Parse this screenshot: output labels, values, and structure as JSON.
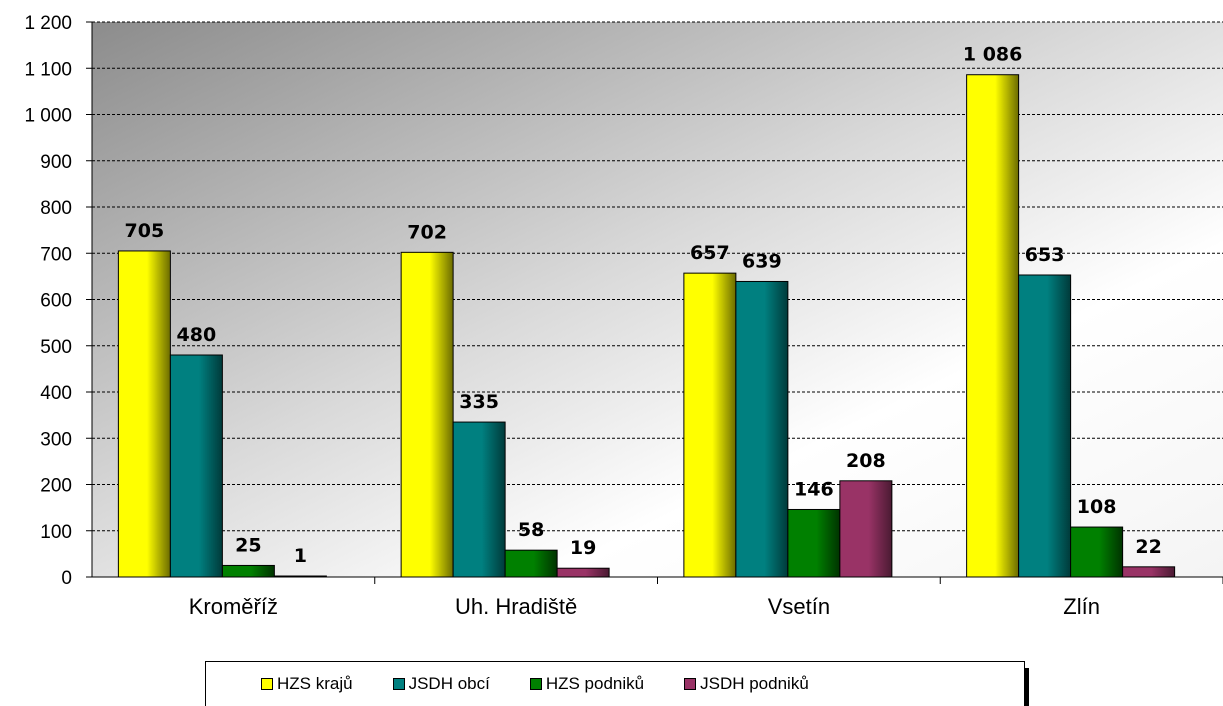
{
  "chart_data": {
    "type": "bar",
    "categories": [
      "Kroměříž",
      "Uh. Hradiště",
      "Vsetín",
      "Zlín"
    ],
    "series": [
      {
        "name": "HZS krajů",
        "values": [
          705,
          702,
          657,
          1086
        ],
        "color": "#ffff00",
        "dark": "#6b6b00"
      },
      {
        "name": "JSDH obcí",
        "values": [
          480,
          335,
          639,
          653
        ],
        "color": "#008080",
        "dark": "#003a3a"
      },
      {
        "name": "HZS podniků",
        "values": [
          25,
          58,
          146,
          108
        ],
        "color": "#008000",
        "dark": "#003300"
      },
      {
        "name": "JSDH podniků",
        "values": [
          1,
          19,
          208,
          22
        ],
        "color": "#993366",
        "dark": "#4a1a32"
      }
    ],
    "value_labels": [
      [
        "705",
        "480",
        "25",
        "1"
      ],
      [
        "702",
        "335",
        "58",
        "19"
      ],
      [
        "657",
        "639",
        "146",
        "208"
      ],
      [
        "1 086",
        "653",
        "108",
        "22"
      ]
    ],
    "yticks": [
      0,
      100,
      200,
      300,
      400,
      500,
      600,
      700,
      800,
      900,
      1000,
      1100,
      1200
    ],
    "ytick_labels": [
      "0",
      "100",
      "200",
      "300",
      "400",
      "500",
      "600",
      "700",
      "800",
      "900",
      "1 000",
      "1 100",
      "1 200"
    ],
    "ylim": [
      0,
      1200
    ],
    "grid": true,
    "legend_position": "bottom",
    "title": "",
    "xlabel": "",
    "ylabel": ""
  }
}
